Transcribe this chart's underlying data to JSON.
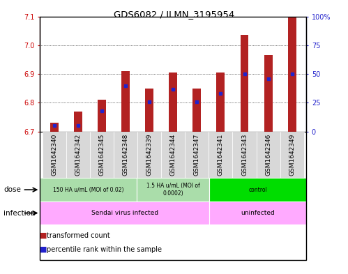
{
  "title": "GDS6082 / ILMN_3195954",
  "samples": [
    "GSM1642340",
    "GSM1642342",
    "GSM1642345",
    "GSM1642348",
    "GSM1642339",
    "GSM1642344",
    "GSM1642347",
    "GSM1642341",
    "GSM1642343",
    "GSM1642346",
    "GSM1642349"
  ],
  "transformed_counts": [
    6.73,
    6.77,
    6.81,
    6.91,
    6.85,
    6.905,
    6.85,
    6.905,
    7.035,
    6.965,
    7.1
  ],
  "percentile_ranks": [
    5,
    5,
    18,
    40,
    26,
    37,
    26,
    33,
    50,
    46,
    50
  ],
  "ylim_left": [
    6.7,
    7.1
  ],
  "ylim_right": [
    0,
    100
  ],
  "yticks_left": [
    6.7,
    6.8,
    6.9,
    7.0,
    7.1
  ],
  "yticks_right": [
    0,
    25,
    50,
    75,
    100
  ],
  "bar_color": "#b22222",
  "blue_color": "#2222cc",
  "dose_groups": [
    {
      "label": "150 HA u/mL (MOI of 0.02)",
      "start": 0,
      "end": 4,
      "color": "#aaddaa"
    },
    {
      "label": "1.5 HA u/mL (MOI of\n0.0002)",
      "start": 4,
      "end": 7,
      "color": "#aaddaa"
    },
    {
      "label": "control",
      "start": 7,
      "end": 11,
      "color": "#00dd00"
    }
  ],
  "infection_groups": [
    {
      "label": "Sendai virus infected",
      "start": 0,
      "end": 7,
      "color": "#ffaaff"
    },
    {
      "label": "uninfected",
      "start": 7,
      "end": 11,
      "color": "#ffaaff"
    }
  ],
  "dose_label": "dose",
  "infection_label": "infection",
  "legend_items": [
    {
      "label": "transformed count",
      "color": "#b22222"
    },
    {
      "label": "percentile rank within the sample",
      "color": "#2222cc"
    }
  ],
  "bar_width": 0.35
}
